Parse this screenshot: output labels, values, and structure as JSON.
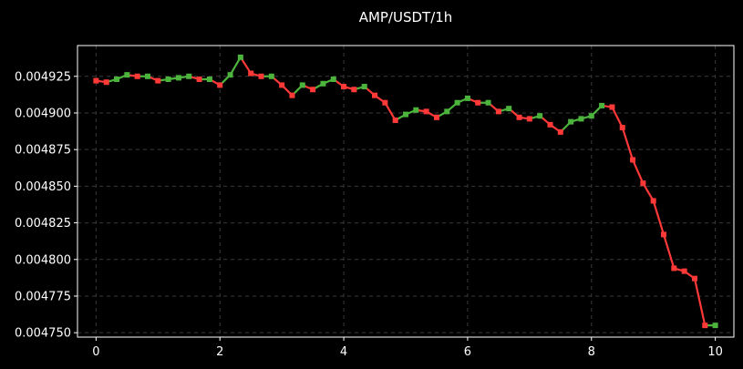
{
  "chart_data": {
    "type": "line",
    "title": "AMP/USDT/1h",
    "xlabel": "",
    "ylabel": "",
    "xlim": [
      -0.3,
      10.3
    ],
    "ylim": [
      0.004747,
      0.004946
    ],
    "x_ticks": [
      0,
      2,
      4,
      6,
      8,
      10
    ],
    "x_tick_labels": [
      "0",
      "2",
      "4",
      "6",
      "8",
      "10"
    ],
    "y_ticks": [
      0.00475,
      0.004775,
      0.0048,
      0.004825,
      0.00485,
      0.004875,
      0.0049,
      0.004925
    ],
    "y_tick_labels": [
      "0.004750",
      "0.004775",
      "0.004800",
      "0.004825",
      "0.004850",
      "0.004875",
      "0.004900",
      "0.004925"
    ],
    "grid": true,
    "colors": {
      "background": "#000000",
      "axes": "#ffffff",
      "grid": "#3a3a3a",
      "up": "#4cb43c",
      "down": "#ff3838"
    },
    "series": [
      {
        "x": [
          0,
          0.1667,
          0.3333,
          0.5,
          0.6667,
          0.8333,
          1.0,
          1.1667,
          1.3333,
          1.5,
          1.6667,
          1.8333,
          2.0,
          2.1667,
          2.3333,
          2.5,
          2.6667,
          2.8333,
          3.0,
          3.1667,
          3.3333,
          3.5,
          3.6667,
          3.8333,
          4.0,
          4.1667,
          4.3333,
          4.5,
          4.6667,
          4.8333,
          5.0,
          5.1667,
          5.3333,
          5.5,
          5.6667,
          5.8333,
          6.0,
          6.1667,
          6.3333,
          6.5,
          6.6667,
          6.8333,
          7.0,
          7.1667,
          7.3333,
          7.5,
          7.6667,
          7.8333,
          8.0,
          8.1667,
          8.3333,
          8.5,
          8.6667,
          8.8333,
          9.0,
          9.1667,
          9.3333,
          9.5,
          9.6667,
          9.8333,
          10.0
        ],
        "y": [
          0.004922,
          0.004921,
          0.004923,
          0.004926,
          0.004925,
          0.004925,
          0.004922,
          0.004923,
          0.004924,
          0.004925,
          0.004923,
          0.004923,
          0.004919,
          0.004926,
          0.004938,
          0.004927,
          0.004925,
          0.004925,
          0.004919,
          0.004912,
          0.004919,
          0.004916,
          0.00492,
          0.004923,
          0.004918,
          0.004916,
          0.004918,
          0.004912,
          0.004907,
          0.004895,
          0.004899,
          0.004902,
          0.004901,
          0.004897,
          0.004901,
          0.004907,
          0.00491,
          0.004907,
          0.004907,
          0.004901,
          0.004903,
          0.004897,
          0.004896,
          0.004898,
          0.004892,
          0.004887,
          0.004894,
          0.004896,
          0.004898,
          0.004905,
          0.004904,
          0.00489,
          0.004868,
          0.004852,
          0.00484,
          0.004817,
          0.004794,
          0.004792,
          0.004787,
          0.004755,
          0.004755
        ]
      }
    ]
  }
}
